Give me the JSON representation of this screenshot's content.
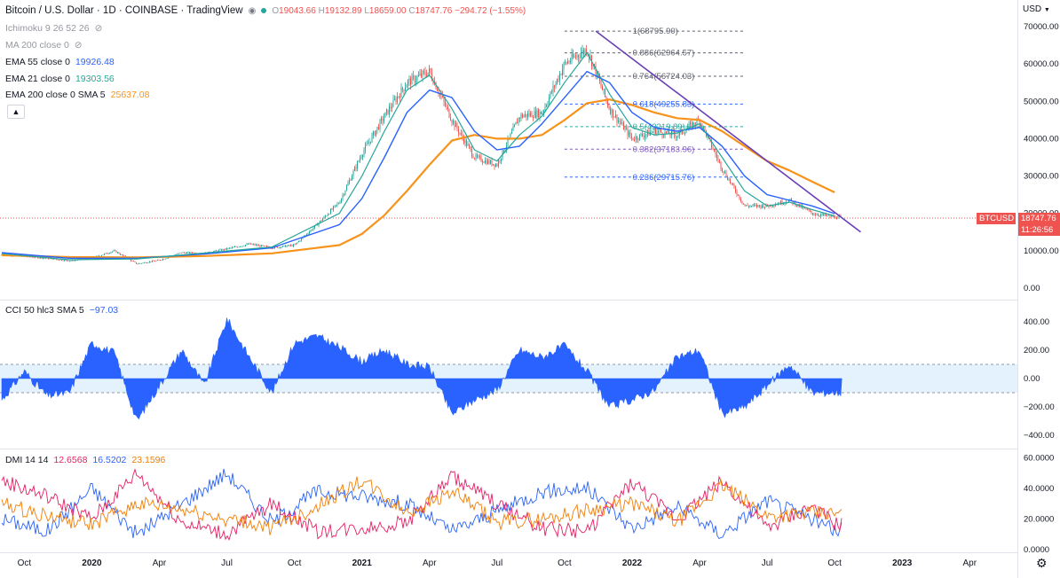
{
  "header": {
    "title": "Bitcoin / U.S. Dollar · 1D · COINBASE · TradingView",
    "ohlc": {
      "o_label": "O",
      "o": "19043.66",
      "h_label": "H",
      "h": "19132.89",
      "l_label": "L",
      "l": "18659.00",
      "c_label": "C",
      "c": "18747.76",
      "change": "−294.72 (−1.55%)"
    },
    "currency": "USD"
  },
  "indicators": {
    "ichimoku": "Ichimoku 9 26 52 26",
    "ma200": "MA 200 close 0",
    "ema55_label": "EMA 55 close 0",
    "ema55_value": "19926.48",
    "ema21_label": "EMA 21 close 0",
    "ema21_value": "19303.56",
    "ema200_label": "EMA 200 close 0 SMA 5",
    "ema200_value": "25637.08"
  },
  "colors": {
    "ema55": "#2962ff",
    "ema21": "#26a69a",
    "ema200": "#f7931a",
    "up": "#26a69a",
    "down": "#ef5350",
    "trendline": "#6a3fb5",
    "cci": "#2962ff",
    "dmi_plus": "#2962ff",
    "dmi_minus": "#e91e63",
    "adx": "#f57c00"
  },
  "price_badge": {
    "symbol": "BTCUSD",
    "price": "18747.76",
    "countdown": "11:26:56"
  },
  "fib_levels": [
    {
      "label": "1(68795.90)"
    },
    {
      "label": "0.886(62964.57)"
    },
    {
      "label": "0.764(56724.03)"
    },
    {
      "label": "0.618(49255.83)"
    },
    {
      "label": "0.5(43219.89)"
    },
    {
      "label": "0.382(37183.96)"
    },
    {
      "label": "0.236(29715.76)"
    }
  ],
  "cci": {
    "label": "CCI 50 hlc3 SMA 5",
    "value": "−97.03"
  },
  "dmi": {
    "label": "DMI 14 14",
    "plus_di": "12.6568",
    "minus_di": "16.5202",
    "adx": "23.1596"
  },
  "chart_data": [
    {
      "type": "line",
      "panel": "price",
      "y_axis": {
        "ticks": [
          "0.00",
          "10000.00",
          "20000.00",
          "30000.00",
          "40000.00",
          "50000.00",
          "60000.00",
          "70000.00"
        ],
        "ylim": [
          0,
          70000
        ]
      },
      "x_axis": {
        "ticks": [
          "Oct",
          "2020",
          "Apr",
          "Jul",
          "Oct",
          "2021",
          "Apr",
          "Jul",
          "Oct",
          "2022",
          "Apr",
          "Jul",
          "Oct",
          "2023",
          "Apr"
        ]
      },
      "series": [
        {
          "key": "price",
          "x": [
            "2019-09",
            "2019-10",
            "2019-11",
            "2019-12",
            "2020-01",
            "2020-02",
            "2020-03",
            "2020-04",
            "2020-05",
            "2020-06",
            "2020-07",
            "2020-08",
            "2020-09",
            "2020-10",
            "2020-11",
            "2020-12",
            "2021-01",
            "2021-02",
            "2021-03",
            "2021-04",
            "2021-05",
            "2021-06",
            "2021-07",
            "2021-08",
            "2021-09",
            "2021-10",
            "2021-11",
            "2021-12",
            "2022-01",
            "2022-02",
            "2022-03",
            "2022-04",
            "2022-05",
            "2022-06",
            "2022-07",
            "2022-08",
            "2022-09",
            "2022-10"
          ],
          "values": [
            9000,
            8500,
            8000,
            7300,
            8000,
            10000,
            6500,
            7500,
            9500,
            9300,
            10500,
            11800,
            10800,
            11500,
            17000,
            23000,
            36000,
            46000,
            55000,
            58000,
            45000,
            35000,
            33000,
            46000,
            47000,
            60000,
            64000,
            48000,
            40000,
            42000,
            41000,
            45000,
            32000,
            22000,
            22000,
            23500,
            20000,
            19000
          ]
        },
        {
          "key": "ema21",
          "x": [
            "2019-09",
            "2019-12",
            "2020-03",
            "2020-06",
            "2020-09",
            "2020-12",
            "2021-01",
            "2021-02",
            "2021-03",
            "2021-04",
            "2021-05",
            "2021-06",
            "2021-07",
            "2021-08",
            "2021-09",
            "2021-10",
            "2021-11",
            "2021-12",
            "2022-01",
            "2022-02",
            "2022-03",
            "2022-04",
            "2022-05",
            "2022-06",
            "2022-07",
            "2022-08",
            "2022-09",
            "2022-10"
          ],
          "values": [
            9200,
            7600,
            7800,
            9400,
            11000,
            20000,
            30000,
            42000,
            53000,
            57000,
            48000,
            37000,
            34000,
            41000,
            46000,
            55000,
            63000,
            52000,
            43000,
            41000,
            41500,
            44000,
            35000,
            26000,
            22000,
            23000,
            21000,
            19304
          ]
        },
        {
          "key": "ema55",
          "x": [
            "2019-09",
            "2019-12",
            "2020-03",
            "2020-06",
            "2020-09",
            "2020-12",
            "2021-01",
            "2021-02",
            "2021-03",
            "2021-04",
            "2021-05",
            "2021-06",
            "2021-07",
            "2021-08",
            "2021-09",
            "2021-10",
            "2021-11",
            "2021-12",
            "2022-01",
            "2022-02",
            "2022-03",
            "2022-04",
            "2022-05",
            "2022-06",
            "2022-07",
            "2022-08",
            "2022-09",
            "2022-10"
          ],
          "values": [
            9500,
            8000,
            8000,
            9100,
            10800,
            17000,
            24000,
            35000,
            47000,
            53000,
            51000,
            42000,
            37000,
            38000,
            44000,
            51000,
            58000,
            55000,
            47000,
            43000,
            42000,
            43000,
            38000,
            30000,
            25000,
            23500,
            22000,
            19926
          ]
        },
        {
          "key": "ema200",
          "x": [
            "2019-09",
            "2019-12",
            "2020-03",
            "2020-06",
            "2020-09",
            "2020-12",
            "2021-01",
            "2021-02",
            "2021-03",
            "2021-04",
            "2021-05",
            "2021-06",
            "2021-07",
            "2021-08",
            "2021-09",
            "2021-10",
            "2021-11",
            "2021-12",
            "2022-01",
            "2022-02",
            "2022-03",
            "2022-04",
            "2022-05",
            "2022-06",
            "2022-07",
            "2022-08",
            "2022-09",
            "2022-10"
          ],
          "values": [
            8800,
            8300,
            8200,
            8600,
            9300,
            11500,
            14500,
            19500,
            26000,
            33000,
            39500,
            41000,
            40000,
            40000,
            41000,
            45000,
            49500,
            50500,
            49000,
            47000,
            45500,
            45000,
            42000,
            38000,
            34000,
            31500,
            28500,
            25637
          ]
        }
      ],
      "trendline": {
        "x": [
          "2021-11",
          "2022-11"
        ],
        "y": [
          68795.9,
          15000
        ]
      }
    },
    {
      "type": "area",
      "panel": "cci",
      "y_axis": {
        "ticks": [
          "400.00",
          "200.00",
          "0.00",
          "−200.00",
          "−400.00"
        ],
        "ylim": [
          -450,
          500
        ]
      },
      "band": [
        -100,
        100
      ],
      "series": [
        {
          "key": "cci",
          "x": [
            "2019-09",
            "2019-10",
            "2019-11",
            "2019-12",
            "2020-01",
            "2020-02",
            "2020-03",
            "2020-04",
            "2020-05",
            "2020-06",
            "2020-07",
            "2020-08",
            "2020-09",
            "2020-10",
            "2020-11",
            "2020-12",
            "2021-01",
            "2021-02",
            "2021-03",
            "2021-04",
            "2021-05",
            "2021-06",
            "2021-07",
            "2021-08",
            "2021-09",
            "2021-10",
            "2021-11",
            "2021-12",
            "2022-01",
            "2022-02",
            "2022-03",
            "2022-04",
            "2022-05",
            "2022-06",
            "2022-07",
            "2022-08",
            "2022-09",
            "2022-10"
          ],
          "values": [
            -150,
            50,
            -120,
            -100,
            250,
            180,
            -300,
            -50,
            200,
            -50,
            420,
            150,
            -100,
            250,
            300,
            220,
            120,
            200,
            100,
            80,
            -250,
            -150,
            -80,
            200,
            150,
            230,
            50,
            -200,
            -150,
            -80,
            150,
            200,
            -250,
            -200,
            -50,
            100,
            -100,
            -97
          ]
        }
      ]
    },
    {
      "type": "line",
      "panel": "dmi",
      "y_axis": {
        "ticks": [
          "60.0000",
          "40.0000",
          "20.0000",
          "0.0000"
        ],
        "ylim": [
          0,
          62
        ]
      },
      "series": [
        {
          "key": "plus_di",
          "x": [
            "2019-09",
            "2019-11",
            "2020-01",
            "2020-03",
            "2020-05",
            "2020-07",
            "2020-09",
            "2020-11",
            "2021-01",
            "2021-03",
            "2021-05",
            "2021-07",
            "2021-09",
            "2021-11",
            "2022-01",
            "2022-03",
            "2022-05",
            "2022-07",
            "2022-09",
            "2022-10"
          ],
          "values": [
            20,
            12,
            40,
            10,
            30,
            50,
            18,
            38,
            35,
            30,
            12,
            25,
            38,
            40,
            14,
            28,
            10,
            32,
            20,
            12.66
          ]
        },
        {
          "key": "minus_di",
          "x": [
            "2019-09",
            "2019-11",
            "2020-01",
            "2020-03",
            "2020-05",
            "2020-07",
            "2020-09",
            "2020-11",
            "2021-01",
            "2021-03",
            "2021-05",
            "2021-07",
            "2021-09",
            "2021-11",
            "2022-01",
            "2022-03",
            "2022-05",
            "2022-07",
            "2022-09",
            "2022-10"
          ],
          "values": [
            45,
            35,
            20,
            50,
            18,
            10,
            30,
            12,
            14,
            18,
            48,
            30,
            14,
            12,
            44,
            20,
            45,
            14,
            28,
            16.52
          ]
        },
        {
          "key": "adx",
          "x": [
            "2019-09",
            "2019-11",
            "2020-01",
            "2020-03",
            "2020-05",
            "2020-07",
            "2020-09",
            "2020-11",
            "2021-01",
            "2021-03",
            "2021-05",
            "2021-07",
            "2021-09",
            "2021-11",
            "2022-01",
            "2022-03",
            "2022-05",
            "2022-07",
            "2022-09",
            "2022-10"
          ],
          "values": [
            30,
            22,
            16,
            30,
            26,
            20,
            14,
            28,
            45,
            24,
            38,
            18,
            20,
            26,
            30,
            18,
            42,
            22,
            24,
            23.16
          ]
        }
      ]
    }
  ]
}
